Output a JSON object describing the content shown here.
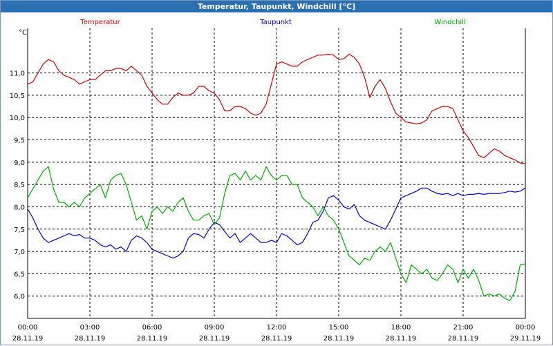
{
  "window": {
    "title": "Temperatur, Taupunkt, Windchill [°C]"
  },
  "chart_data": {
    "type": "line",
    "title": "Temperatur, Taupunkt, Windchill [°C]",
    "ylabel": "°C",
    "xlabel": "",
    "ylim": [
      5.5,
      12.0
    ],
    "xlim": [
      0,
      24
    ],
    "grid": true,
    "y_ticks": [
      6.0,
      6.5,
      7.0,
      7.5,
      8.0,
      8.5,
      9.0,
      9.5,
      10.0,
      10.5,
      11.0
    ],
    "y_tick_labels": [
      "6,0",
      "6,5",
      "7,0",
      "7,5",
      "8,0",
      "8,5",
      "9,0",
      "9,5",
      "10,0",
      "10,5",
      "11,0"
    ],
    "x_ticks": [
      {
        "hour": 0,
        "time": "00:00",
        "date": "28.11.19"
      },
      {
        "hour": 3,
        "time": "03:00",
        "date": "28.11.19"
      },
      {
        "hour": 6,
        "time": "06:00",
        "date": "28.11.19"
      },
      {
        "hour": 9,
        "time": "09:00",
        "date": "28.11.19"
      },
      {
        "hour": 12,
        "time": "12:00",
        "date": "28.11.19"
      },
      {
        "hour": 15,
        "time": "15:00",
        "date": "28.11.19"
      },
      {
        "hour": 18,
        "time": "18:00",
        "date": "28.11.19"
      },
      {
        "hour": 21,
        "time": "21:00",
        "date": "28.11.19"
      },
      {
        "hour": 24,
        "time": "00:00",
        "date": "29.11.19"
      }
    ],
    "series": [
      {
        "name": "Temperatur",
        "color": "#cc0000",
        "x": [
          0.0,
          0.25,
          0.5,
          0.75,
          1.0,
          1.25,
          1.5,
          1.75,
          2.0,
          2.25,
          2.5,
          2.75,
          3.0,
          3.25,
          3.5,
          3.75,
          4.0,
          4.25,
          4.5,
          4.75,
          5.0,
          5.25,
          5.5,
          5.75,
          6.0,
          6.25,
          6.5,
          6.75,
          7.0,
          7.25,
          7.5,
          7.75,
          8.0,
          8.25,
          8.5,
          8.75,
          9.0,
          9.25,
          9.5,
          9.75,
          10.0,
          10.25,
          10.5,
          10.75,
          11.0,
          11.25,
          11.5,
          11.75,
          12.0,
          12.25,
          12.5,
          12.75,
          13.0,
          13.25,
          13.5,
          13.75,
          14.0,
          14.25,
          14.5,
          14.75,
          15.0,
          15.25,
          15.5,
          15.75,
          16.0,
          16.25,
          16.5,
          16.75,
          17.0,
          17.25,
          17.5,
          17.75,
          18.0,
          18.25,
          18.5,
          18.75,
          19.0,
          19.25,
          19.5,
          19.75,
          20.0,
          20.25,
          20.5,
          20.75,
          21.0,
          21.25,
          21.5,
          21.75,
          22.0,
          22.25,
          22.5,
          22.75,
          23.0,
          23.25,
          23.5,
          23.75,
          24.0
        ],
        "values": [
          10.75,
          10.8,
          11.0,
          11.2,
          11.3,
          11.25,
          11.05,
          10.95,
          10.9,
          10.85,
          10.75,
          10.8,
          10.85,
          10.85,
          10.95,
          11.05,
          11.05,
          11.1,
          11.1,
          11.05,
          11.15,
          11.05,
          10.95,
          10.7,
          10.55,
          10.4,
          10.3,
          10.3,
          10.45,
          10.55,
          10.5,
          10.5,
          10.55,
          10.7,
          10.7,
          10.6,
          10.55,
          10.4,
          10.15,
          10.15,
          10.25,
          10.25,
          10.2,
          10.1,
          10.05,
          10.1,
          10.3,
          10.75,
          11.2,
          11.25,
          11.2,
          11.15,
          11.15,
          11.25,
          11.3,
          11.35,
          11.4,
          11.4,
          11.42,
          11.4,
          11.3,
          11.32,
          11.42,
          11.35,
          11.2,
          10.9,
          10.45,
          10.7,
          10.85,
          10.65,
          10.35,
          10.1,
          10.0,
          9.9,
          9.88,
          9.86,
          9.88,
          9.95,
          10.15,
          10.2,
          10.25,
          10.25,
          10.2,
          9.95,
          9.7,
          9.55,
          9.35,
          9.15,
          9.1,
          9.2,
          9.3,
          9.25,
          9.15,
          9.1,
          9.05,
          8.98,
          8.97
        ]
      },
      {
        "name": "Taupunkt",
        "color": "#0000cc",
        "x": [
          0.0,
          0.25,
          0.5,
          0.75,
          1.0,
          1.25,
          1.5,
          1.75,
          2.0,
          2.25,
          2.5,
          2.75,
          3.0,
          3.25,
          3.5,
          3.75,
          4.0,
          4.25,
          4.5,
          4.75,
          5.0,
          5.25,
          5.5,
          5.75,
          6.0,
          6.25,
          6.5,
          6.75,
          7.0,
          7.25,
          7.5,
          7.75,
          8.0,
          8.25,
          8.5,
          8.75,
          9.0,
          9.25,
          9.5,
          9.75,
          10.0,
          10.25,
          10.5,
          10.75,
          11.0,
          11.25,
          11.5,
          11.75,
          12.0,
          12.25,
          12.5,
          12.75,
          13.0,
          13.25,
          13.5,
          13.75,
          14.0,
          14.25,
          14.5,
          14.75,
          15.0,
          15.25,
          15.5,
          15.75,
          16.0,
          16.25,
          16.5,
          16.75,
          17.0,
          17.25,
          17.5,
          17.75,
          18.0,
          18.25,
          18.5,
          18.75,
          19.0,
          19.25,
          19.5,
          19.75,
          20.0,
          20.25,
          20.5,
          20.75,
          21.0,
          21.25,
          21.5,
          21.75,
          22.0,
          22.25,
          22.5,
          22.75,
          23.0,
          23.25,
          23.5,
          23.75,
          24.0
        ],
        "values": [
          7.95,
          7.75,
          7.5,
          7.3,
          7.2,
          7.25,
          7.3,
          7.35,
          7.4,
          7.35,
          7.38,
          7.3,
          7.3,
          7.25,
          7.15,
          7.1,
          7.15,
          7.05,
          7.1,
          7.0,
          7.25,
          7.35,
          7.3,
          7.2,
          7.05,
          7.0,
          6.95,
          6.9,
          6.85,
          6.9,
          7.0,
          7.3,
          7.4,
          7.38,
          7.3,
          7.5,
          7.65,
          7.6,
          7.45,
          7.3,
          7.4,
          7.2,
          7.3,
          7.4,
          7.3,
          7.2,
          7.2,
          7.25,
          7.2,
          7.4,
          7.35,
          7.25,
          7.15,
          7.2,
          7.4,
          7.65,
          7.7,
          7.9,
          8.2,
          8.25,
          8.15,
          8.0,
          7.95,
          8.05,
          7.8,
          7.7,
          7.65,
          7.6,
          7.55,
          7.5,
          7.7,
          7.95,
          8.2,
          8.25,
          8.3,
          8.35,
          8.42,
          8.42,
          8.35,
          8.3,
          8.28,
          8.3,
          8.25,
          8.3,
          8.25,
          8.28,
          8.28,
          8.3,
          8.28,
          8.3,
          8.3,
          8.3,
          8.32,
          8.35,
          8.33,
          8.35,
          8.42
        ]
      },
      {
        "name": "Windchill",
        "color": "#00aa00",
        "x": [
          0.0,
          0.25,
          0.5,
          0.75,
          1.0,
          1.25,
          1.5,
          1.75,
          2.0,
          2.25,
          2.5,
          2.75,
          3.0,
          3.25,
          3.5,
          3.75,
          4.0,
          4.25,
          4.5,
          4.75,
          5.0,
          5.25,
          5.5,
          5.75,
          6.0,
          6.25,
          6.5,
          6.75,
          7.0,
          7.25,
          7.5,
          7.75,
          8.0,
          8.25,
          8.5,
          8.75,
          9.0,
          9.25,
          9.5,
          9.75,
          10.0,
          10.25,
          10.5,
          10.75,
          11.0,
          11.25,
          11.5,
          11.75,
          12.0,
          12.25,
          12.5,
          12.75,
          13.0,
          13.25,
          13.5,
          13.75,
          14.0,
          14.25,
          14.5,
          14.75,
          15.0,
          15.25,
          15.5,
          15.75,
          16.0,
          16.25,
          16.5,
          16.75,
          17.0,
          17.25,
          17.5,
          17.75,
          18.0,
          18.25,
          18.5,
          18.75,
          19.0,
          19.25,
          19.5,
          19.75,
          20.0,
          20.25,
          20.5,
          20.75,
          21.0,
          21.25,
          21.5,
          21.75,
          22.0,
          22.25,
          22.5,
          22.75,
          23.0,
          23.25,
          23.5,
          23.75,
          24.0
        ],
        "values": [
          8.2,
          8.4,
          8.6,
          8.8,
          8.9,
          8.4,
          8.1,
          8.1,
          8.0,
          8.1,
          8.0,
          8.2,
          8.3,
          8.4,
          8.5,
          8.2,
          8.6,
          8.7,
          8.75,
          8.5,
          8.1,
          7.7,
          7.8,
          7.5,
          7.9,
          8.0,
          7.85,
          8.0,
          7.9,
          8.1,
          8.2,
          7.9,
          7.7,
          7.7,
          7.8,
          7.85,
          7.6,
          7.75,
          8.3,
          8.7,
          8.75,
          8.6,
          8.8,
          8.6,
          8.7,
          8.6,
          8.9,
          8.7,
          8.6,
          8.7,
          8.7,
          8.5,
          8.5,
          8.2,
          8.1,
          8.0,
          7.8,
          8.0,
          7.8,
          7.7,
          7.5,
          7.2,
          6.9,
          6.8,
          6.7,
          6.85,
          6.8,
          7.0,
          7.1,
          7.0,
          7.2,
          6.85,
          6.5,
          6.3,
          6.7,
          6.6,
          6.5,
          6.6,
          6.4,
          6.35,
          6.5,
          6.7,
          6.6,
          6.3,
          6.6,
          6.4,
          6.6,
          6.35,
          6.0,
          6.05,
          6.0,
          6.05,
          5.95,
          5.9,
          6.1,
          6.7,
          6.72
        ]
      }
    ]
  }
}
